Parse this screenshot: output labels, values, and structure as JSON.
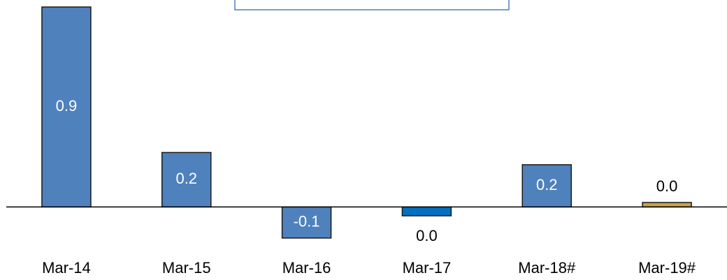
{
  "chart_data": {
    "type": "bar",
    "categories": [
      "Mar-14",
      "Mar-15",
      "Mar-16",
      "Mar-17",
      "Mar-18#",
      "Mar-19#"
    ],
    "values": [
      0.9,
      0.245,
      -0.14,
      -0.04,
      0.19,
      0.02
    ],
    "value_labels": [
      "0.9",
      "0.2",
      "-0.1",
      "0.0",
      "0.2",
      "0.0"
    ],
    "colors": [
      "#4f81bd",
      "#4f81bd",
      "#4f81bd",
      "#0070c0",
      "#4f81bd",
      "#c9a24a"
    ],
    "ylim": [
      -0.2,
      0.9
    ]
  }
}
